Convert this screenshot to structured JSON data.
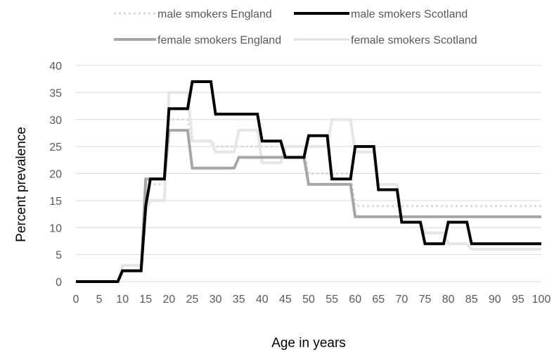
{
  "chart_data": {
    "type": "line",
    "title": "",
    "xlabel": "Age in years",
    "ylabel": "Percent prevalence",
    "xlim": [
      0,
      100
    ],
    "ylim": [
      0,
      40
    ],
    "x_ticks": [
      "0",
      "5",
      "10",
      "15",
      "20",
      "25",
      "30",
      "35",
      "40",
      "45",
      "50",
      "55",
      "60",
      "65",
      "70",
      "75",
      "80",
      "85",
      "90",
      "95",
      "100"
    ],
    "y_ticks": [
      "0",
      "5",
      "10",
      "15",
      "20",
      "25",
      "30",
      "35",
      "40"
    ],
    "grid": "horizontal",
    "legend_position": "top",
    "series": [
      {
        "name": "male smokers England",
        "style": "dotted",
        "color": "#d9d9d9",
        "points": [
          [
            0,
            0
          ],
          [
            9,
            0
          ],
          [
            10,
            2
          ],
          [
            14,
            2
          ],
          [
            15,
            14
          ],
          [
            16,
            18
          ],
          [
            19,
            18
          ],
          [
            20,
            30
          ],
          [
            24,
            30
          ],
          [
            25,
            26
          ],
          [
            29,
            26
          ],
          [
            30,
            25
          ],
          [
            49,
            25
          ],
          [
            50,
            20
          ],
          [
            59,
            20
          ],
          [
            60,
            14
          ],
          [
            100,
            14
          ]
        ]
      },
      {
        "name": "male smokers Scotland",
        "style": "solid",
        "color": "#000000",
        "points": [
          [
            0,
            0
          ],
          [
            9,
            0
          ],
          [
            10,
            2
          ],
          [
            14,
            2
          ],
          [
            15,
            14
          ],
          [
            16,
            19
          ],
          [
            19,
            19
          ],
          [
            20,
            32
          ],
          [
            24,
            32
          ],
          [
            25,
            37
          ],
          [
            29,
            37
          ],
          [
            30,
            31
          ],
          [
            39,
            31
          ],
          [
            40,
            26
          ],
          [
            44,
            26
          ],
          [
            45,
            23
          ],
          [
            49,
            23
          ],
          [
            50,
            27
          ],
          [
            54,
            27
          ],
          [
            55,
            19
          ],
          [
            59,
            19
          ],
          [
            60,
            25
          ],
          [
            64,
            25
          ],
          [
            65,
            17
          ],
          [
            69,
            17
          ],
          [
            70,
            11
          ],
          [
            74,
            11
          ],
          [
            75,
            7
          ],
          [
            79,
            7
          ],
          [
            80,
            11
          ],
          [
            84,
            11
          ],
          [
            85,
            7
          ],
          [
            100,
            7
          ]
        ]
      },
      {
        "name": "female smokers England",
        "style": "solid",
        "color": "#a6a6a6",
        "points": [
          [
            0,
            0
          ],
          [
            9,
            0
          ],
          [
            10,
            2
          ],
          [
            14,
            2
          ],
          [
            15,
            19
          ],
          [
            19,
            19
          ],
          [
            20,
            28
          ],
          [
            24,
            28
          ],
          [
            25,
            21
          ],
          [
            34,
            21
          ],
          [
            35,
            23
          ],
          [
            49,
            23
          ],
          [
            50,
            18
          ],
          [
            59,
            18
          ],
          [
            60,
            12
          ],
          [
            100,
            12
          ]
        ]
      },
      {
        "name": "female smokers Scotland",
        "style": "solid",
        "color": "#e6e6e6",
        "points": [
          [
            0,
            0
          ],
          [
            9,
            0
          ],
          [
            10,
            3
          ],
          [
            14,
            3
          ],
          [
            15,
            13
          ],
          [
            16,
            15
          ],
          [
            19,
            15
          ],
          [
            20,
            35
          ],
          [
            24,
            35
          ],
          [
            25,
            26
          ],
          [
            29,
            26
          ],
          [
            30,
            24
          ],
          [
            34,
            24
          ],
          [
            35,
            28
          ],
          [
            39,
            28
          ],
          [
            40,
            22
          ],
          [
            44,
            22
          ],
          [
            45,
            25
          ],
          [
            54,
            25
          ],
          [
            55,
            30
          ],
          [
            59,
            30
          ],
          [
            60,
            24
          ],
          [
            64,
            24
          ],
          [
            65,
            18
          ],
          [
            69,
            18
          ],
          [
            70,
            11
          ],
          [
            74,
            11
          ],
          [
            75,
            9
          ],
          [
            79,
            9
          ],
          [
            80,
            7
          ],
          [
            84,
            7
          ],
          [
            85,
            6
          ],
          [
            100,
            6
          ]
        ]
      }
    ]
  }
}
